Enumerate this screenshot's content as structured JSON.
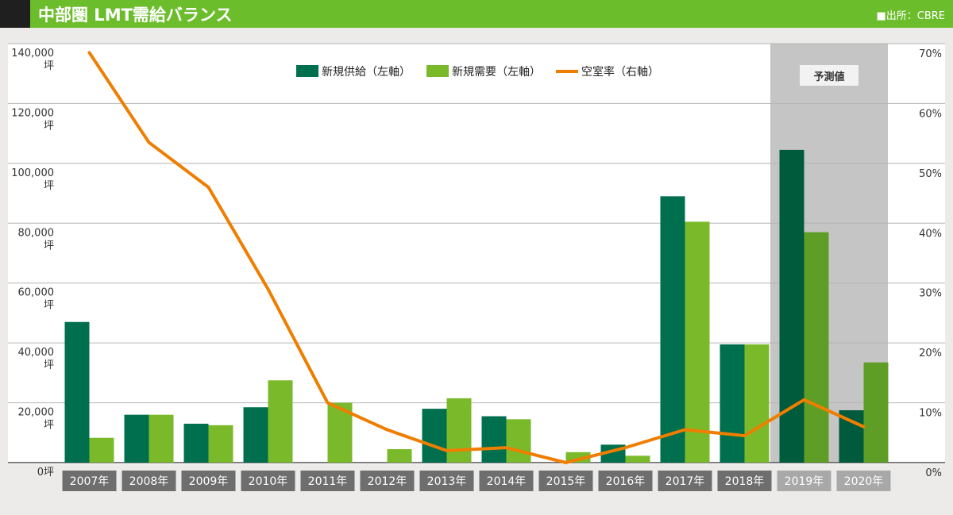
{
  "header": {
    "title": "中部圏 LMT需給バランス",
    "source": "■出所：CBRE"
  },
  "colors": {
    "header_bg": "#6cbd2c",
    "header_mark": "#1f1f1f",
    "supply": "#006f4d",
    "demand": "#7aba2a",
    "supply_forecast": "#005a3c",
    "demand_forecast": "#5f9e26",
    "vacancy": "#ef7e00",
    "forecast_bg": "#c6c5c5",
    "xlabel_bg": "#6e6e6e",
    "xlabel_forecast_bg": "#a9a8a8"
  },
  "chart_data": {
    "type": "bar",
    "categories": [
      "2007年",
      "2008年",
      "2009年",
      "2010年",
      "2011年",
      "2012年",
      "2013年",
      "2014年",
      "2015年",
      "2016年",
      "2017年",
      "2018年",
      "2019年",
      "2020年"
    ],
    "series": [
      {
        "name": "新規供給（左軸）",
        "kind": "bar",
        "axis": "left",
        "values": [
          47000,
          16000,
          13000,
          18500,
          0,
          0,
          18000,
          15500,
          0,
          6000,
          89000,
          39500,
          104500,
          17500
        ]
      },
      {
        "name": "新規需要（左軸）",
        "kind": "bar",
        "axis": "left",
        "values": [
          8300,
          16000,
          12500,
          27500,
          20000,
          4500,
          21500,
          14500,
          3500,
          2300,
          80500,
          39500,
          77000,
          33500
        ]
      },
      {
        "name": "空室率（右軸）",
        "kind": "line",
        "axis": "right",
        "values": [
          68.5,
          53.5,
          46,
          29,
          10,
          5.5,
          2,
          2.5,
          0,
          2.5,
          5.5,
          4.5,
          10.5,
          6
        ]
      }
    ],
    "y_left": {
      "ylim": [
        0,
        140000
      ],
      "ticks": [
        0,
        20000,
        40000,
        60000,
        80000,
        100000,
        120000,
        140000
      ],
      "tick_labels": [
        "0坪",
        "20,000",
        "40,000",
        "60,000",
        "80,000",
        "100,000",
        "120,000",
        "140,000"
      ],
      "unit_label": "坪"
    },
    "y_right": {
      "ylim": [
        0,
        70
      ],
      "ticks": [
        0,
        10,
        20,
        30,
        40,
        50,
        60,
        70
      ],
      "tick_labels": [
        "0%",
        "10%",
        "20%",
        "30%",
        "40%",
        "50%",
        "60%",
        "70%"
      ]
    },
    "forecast": {
      "label": "予測値",
      "from_index": 12
    },
    "legend": {
      "position": "top-center"
    },
    "grid": true
  }
}
